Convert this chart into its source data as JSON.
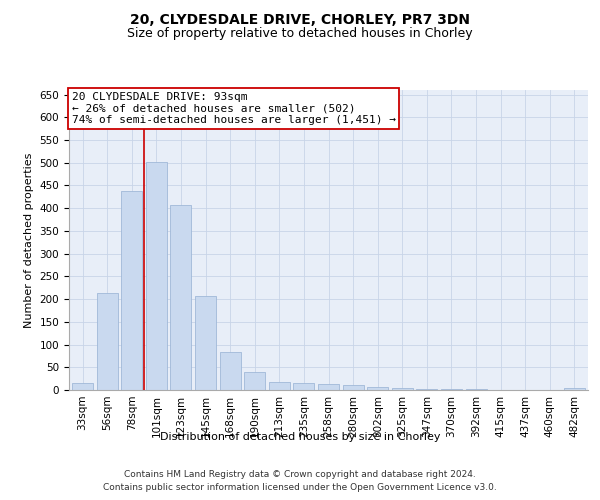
{
  "title": "20, CLYDESDALE DRIVE, CHORLEY, PR7 3DN",
  "subtitle": "Size of property relative to detached houses in Chorley",
  "xlabel": "Distribution of detached houses by size in Chorley",
  "ylabel": "Number of detached properties",
  "categories": [
    "33sqm",
    "56sqm",
    "78sqm",
    "101sqm",
    "123sqm",
    "145sqm",
    "168sqm",
    "190sqm",
    "213sqm",
    "235sqm",
    "258sqm",
    "280sqm",
    "302sqm",
    "325sqm",
    "347sqm",
    "370sqm",
    "392sqm",
    "415sqm",
    "437sqm",
    "460sqm",
    "482sqm"
  ],
  "values": [
    15,
    213,
    437,
    502,
    408,
    207,
    84,
    39,
    17,
    16,
    13,
    10,
    6,
    4,
    3,
    2,
    2,
    1,
    1,
    1,
    4
  ],
  "bar_color": "#c9d9ef",
  "bar_edge_color": "#a0b8d8",
  "vline_color": "#cc0000",
  "annotation_text": "20 CLYDESDALE DRIVE: 93sqm\n← 26% of detached houses are smaller (502)\n74% of semi-detached houses are larger (1,451) →",
  "annotation_box_color": "#ffffff",
  "annotation_box_edge_color": "#cc0000",
  "ylim": [
    0,
    660
  ],
  "yticks": [
    0,
    50,
    100,
    150,
    200,
    250,
    300,
    350,
    400,
    450,
    500,
    550,
    600,
    650
  ],
  "grid_color": "#c8d4e8",
  "background_color": "#e8eef8",
  "footer_text": "Contains HM Land Registry data © Crown copyright and database right 2024.\nContains public sector information licensed under the Open Government Licence v3.0.",
  "title_fontsize": 10,
  "subtitle_fontsize": 9,
  "axis_label_fontsize": 8,
  "tick_fontsize": 7.5,
  "annotation_fontsize": 8,
  "footer_fontsize": 6.5
}
